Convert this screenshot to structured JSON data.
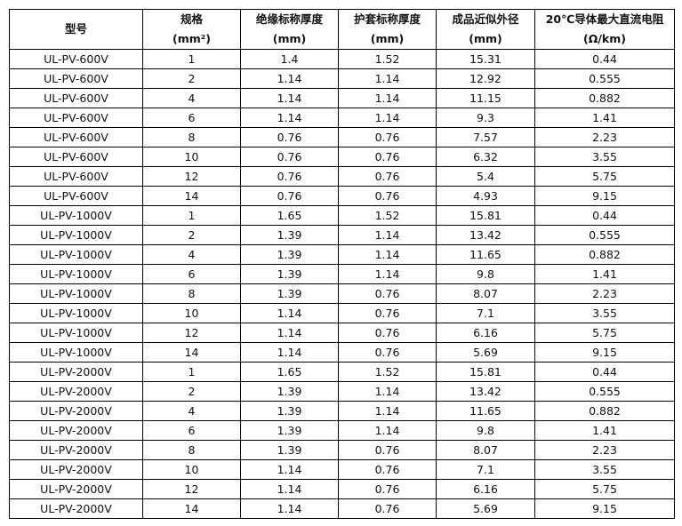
{
  "table": {
    "headers": [
      {
        "line1": "型号",
        "line2": ""
      },
      {
        "line1": "规格",
        "line2": "(mm²)"
      },
      {
        "line1": "绝缘标称厚度",
        "line2": "(mm)"
      },
      {
        "line1": "护套标称厚度",
        "line2": "(mm)"
      },
      {
        "line1": "成品近似外径",
        "line2": "(mm)"
      },
      {
        "line1": "20℃导体最大直流电阻",
        "line2": "(Ω/km)"
      }
    ],
    "rows": [
      [
        "UL-PV-600V",
        "1",
        "1.4",
        "1.52",
        "15.31",
        "0.44"
      ],
      [
        "UL-PV-600V",
        "2",
        "1.14",
        "1.14",
        "12.92",
        "0.555"
      ],
      [
        "UL-PV-600V",
        "4",
        "1.14",
        "1.14",
        "11.15",
        "0.882"
      ],
      [
        "UL-PV-600V",
        "6",
        "1.14",
        "1.14",
        "9.3",
        "1.41"
      ],
      [
        "UL-PV-600V",
        "8",
        "0.76",
        "0.76",
        "7.57",
        "2.23"
      ],
      [
        "UL-PV-600V",
        "10",
        "0.76",
        "0.76",
        "6.32",
        "3.55"
      ],
      [
        "UL-PV-600V",
        "12",
        "0.76",
        "0.76",
        "5.4",
        "5.75"
      ],
      [
        "UL-PV-600V",
        "14",
        "0.76",
        "0.76",
        "4.93",
        "9.15"
      ],
      [
        "UL-PV-1000V",
        "1",
        "1.65",
        "1.52",
        "15.81",
        "0.44"
      ],
      [
        "UL-PV-1000V",
        "2",
        "1.39",
        "1.14",
        "13.42",
        "0.555"
      ],
      [
        "UL-PV-1000V",
        "4",
        "1.39",
        "1.14",
        "11.65",
        "0.882"
      ],
      [
        "UL-PV-1000V",
        "6",
        "1.39",
        "1.14",
        "9.8",
        "1.41"
      ],
      [
        "UL-PV-1000V",
        "8",
        "1.39",
        "0.76",
        "8.07",
        "2.23"
      ],
      [
        "UL-PV-1000V",
        "10",
        "1.14",
        "0.76",
        "7.1",
        "3.55"
      ],
      [
        "UL-PV-1000V",
        "12",
        "1.14",
        "0.76",
        "6.16",
        "5.75"
      ],
      [
        "UL-PV-1000V",
        "14",
        "1.14",
        "0.76",
        "5.69",
        "9.15"
      ],
      [
        "UL-PV-2000V",
        "1",
        "1.65",
        "1.52",
        "15.81",
        "0.44"
      ],
      [
        "UL-PV-2000V",
        "2",
        "1.39",
        "1.14",
        "13.42",
        "0.555"
      ],
      [
        "UL-PV-2000V",
        "4",
        "1.39",
        "1.14",
        "11.65",
        "0.882"
      ],
      [
        "UL-PV-2000V",
        "6",
        "1.39",
        "1.14",
        "9.8",
        "1.41"
      ],
      [
        "UL-PV-2000V",
        "8",
        "1.39",
        "0.76",
        "8.07",
        "2.23"
      ],
      [
        "UL-PV-2000V",
        "10",
        "1.14",
        "0.76",
        "7.1",
        "3.55"
      ],
      [
        "UL-PV-2000V",
        "12",
        "1.14",
        "0.76",
        "6.16",
        "5.75"
      ],
      [
        "UL-PV-2000V",
        "14",
        "1.14",
        "0.76",
        "5.69",
        "9.15"
      ]
    ]
  }
}
